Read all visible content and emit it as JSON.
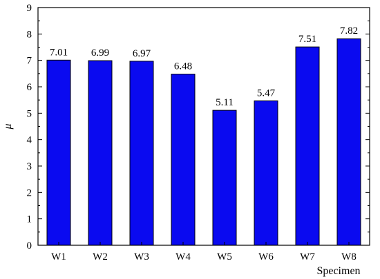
{
  "chart_data": {
    "type": "bar",
    "categories": [
      "W1",
      "W2",
      "W3",
      "W4",
      "W5",
      "W6",
      "W7",
      "W8"
    ],
    "values": [
      7.01,
      6.99,
      6.97,
      6.48,
      5.11,
      5.47,
      7.51,
      7.82
    ],
    "data_labels": [
      "7.01",
      "6.99",
      "6.97",
      "6.48",
      "5.11",
      "5.47",
      "7.51",
      "7.82"
    ],
    "title": "",
    "xlabel": "Specimen",
    "ylabel": "μ",
    "ylim": [
      0,
      9
    ],
    "yticks": [
      0,
      1,
      2,
      3,
      4,
      5,
      6,
      7,
      8,
      9
    ],
    "grid": false,
    "bar_color": "#0a0af0",
    "bar_edge_color": "#000000"
  }
}
